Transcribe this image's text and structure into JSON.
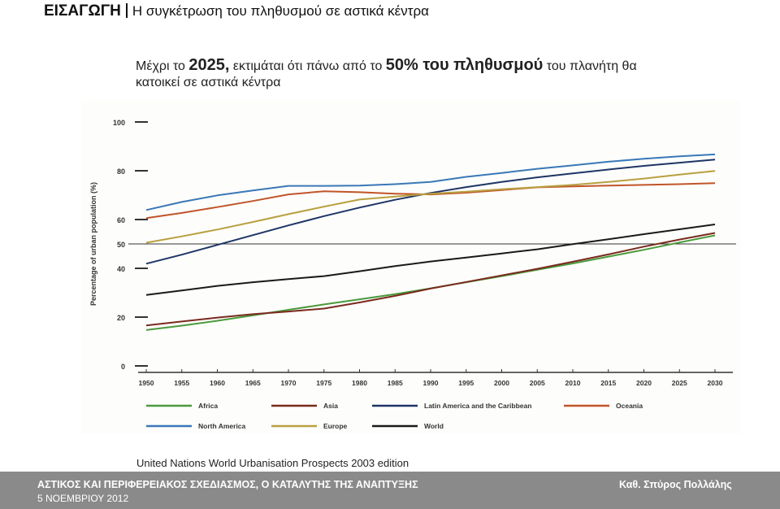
{
  "header": {
    "section": "ΕΙΣΑΓΩΓΗ",
    "subtitle": "Η συγκέτρωση του πληθυσμού σε αστικά κέντρα"
  },
  "headline": {
    "part1": "Μέχρι το ",
    "year": "2025,",
    "part2": " εκτιμάται ότι πάνω από το ",
    "percent": "50% του πληθυσμού",
    "part3": " του πλανήτη θα κατοικεί σε αστικά κέντρα"
  },
  "source": "United Nations World Urbanisation Prospects    2003 edition",
  "footer": {
    "title": "ΑΣΤΙΚΟΣ ΚΑΙ ΠΕΡΙΦΕΡΕΙΑΚΟΣ ΣΧΕΔΙΑΣΜΟΣ, Ο ΚΑΤΑΛΥΤΗΣ ΤΗΣ ΑΝΑΠΤΥΞΗΣ",
    "date": "5 ΝΟΕΜΒΡΙΟΥ 2012",
    "author": "Καθ. Σπύρος Πολλάλης"
  },
  "chart_data": {
    "type": "line",
    "ylabel": "Percentage of urban population (%)",
    "xlabel": "",
    "ylim": [
      0,
      100
    ],
    "yticks": [
      0,
      20,
      40,
      50,
      60,
      80,
      100
    ],
    "reference_line": 50,
    "x": [
      1950,
      1955,
      1960,
      1965,
      1970,
      1975,
      1980,
      1985,
      1990,
      1995,
      2000,
      2005,
      2010,
      2015,
      2020,
      2025,
      2030
    ],
    "legend_position": "bottom",
    "series": [
      {
        "name": "Africa",
        "color": "#4a9a3c",
        "values": [
          14.7,
          16.5,
          18.5,
          20.7,
          23.0,
          25.2,
          27.3,
          29.4,
          31.8,
          34.3,
          36.8,
          39.4,
          42.0,
          44.8,
          47.6,
          50.6,
          53.5
        ]
      },
      {
        "name": "Asia",
        "color": "#7a2a1e",
        "values": [
          16.6,
          18.2,
          19.8,
          21.2,
          22.3,
          23.5,
          26.0,
          28.7,
          31.7,
          34.4,
          37.1,
          39.8,
          42.7,
          45.7,
          48.9,
          51.8,
          54.5
        ]
      },
      {
        "name": "Latin America and the Caribbean",
        "color": "#1e3566",
        "values": [
          41.9,
          45.6,
          49.6,
          53.6,
          57.6,
          61.4,
          64.9,
          68.1,
          70.9,
          73.3,
          75.4,
          77.3,
          78.9,
          80.5,
          82.0,
          83.3,
          84.6
        ]
      },
      {
        "name": "Oceania",
        "color": "#c0552a",
        "values": [
          60.6,
          62.7,
          65.1,
          67.6,
          70.3,
          71.6,
          71.2,
          70.6,
          70.3,
          71.0,
          72.1,
          73.2,
          73.6,
          73.9,
          74.2,
          74.5,
          74.9
        ]
      },
      {
        "name": "North America",
        "color": "#3a78b8",
        "values": [
          63.9,
          67.2,
          69.9,
          71.9,
          73.8,
          73.8,
          73.9,
          74.5,
          75.4,
          77.5,
          79.1,
          80.8,
          82.2,
          83.7,
          84.9,
          85.9,
          86.7
        ]
      },
      {
        "name": "Europe",
        "color": "#b8a040",
        "values": [
          50.5,
          53.1,
          55.9,
          59.0,
          62.2,
          65.3,
          68.2,
          69.4,
          70.6,
          71.4,
          72.4,
          73.3,
          74.2,
          75.4,
          76.8,
          78.4,
          79.9
        ]
      },
      {
        "name": "World",
        "color": "#1a1a1a",
        "values": [
          29.1,
          30.9,
          32.8,
          34.3,
          35.6,
          36.8,
          38.8,
          40.9,
          42.8,
          44.4,
          46.1,
          47.8,
          49.9,
          51.9,
          54.0,
          56.0,
          58.0
        ]
      }
    ],
    "legend_rows": [
      [
        "Africa",
        "Asia",
        "Latin America and the Caribbean",
        "Oceania"
      ],
      [
        "North America",
        "Europe",
        "World"
      ]
    ]
  }
}
